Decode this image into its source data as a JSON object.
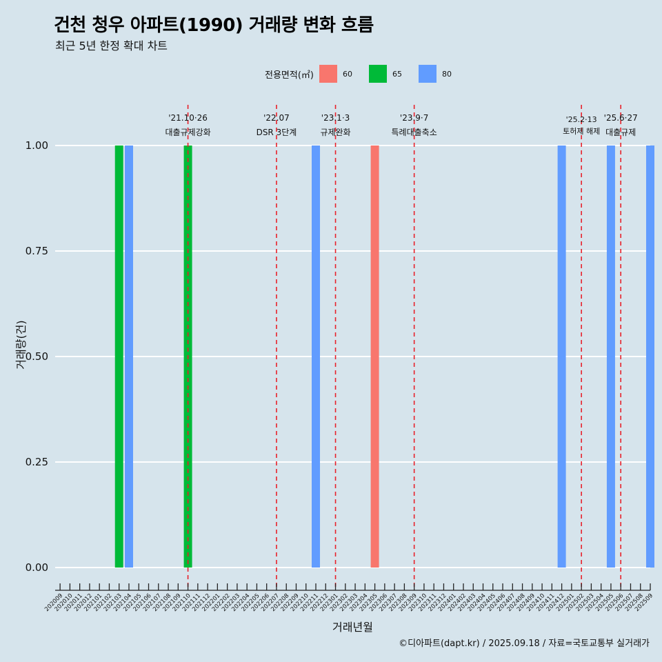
{
  "title": "건천 청우 아파트(1990) 거래량 변화 흐름",
  "subtitle": "최근 5년 한정 확대 차트",
  "caption": "©디아파트(dapt.kr) / 2025.09.18 / 자료=국토교통부 실거래가",
  "legend": {
    "title": "전용면적(㎡)",
    "items": [
      {
        "label": "60",
        "color": "#f8766d"
      },
      {
        "label": "65",
        "color": "#00ba38"
      },
      {
        "label": "80",
        "color": "#619cff"
      }
    ]
  },
  "chart_data": {
    "type": "bar",
    "title": "건천 청우 아파트(1990) 거래량 변화 흐름",
    "subtitle": "최근 5년 한정 확대 차트",
    "xlabel": "거래년월",
    "ylabel": "거래량(건)",
    "ylim": [
      0,
      1
    ],
    "yticks": [
      "0.00",
      "0.25",
      "0.50",
      "0.75",
      "1.00"
    ],
    "grid": true,
    "legend_position": "top",
    "categories": [
      "202009",
      "202010",
      "202011",
      "202012",
      "202101",
      "202102",
      "202103",
      "202104",
      "202105",
      "202106",
      "202107",
      "202108",
      "202109",
      "202110",
      "202111",
      "202112",
      "202201",
      "202202",
      "202203",
      "202204",
      "202205",
      "202206",
      "202207",
      "202208",
      "202209",
      "202210",
      "202211",
      "202212",
      "202301",
      "202302",
      "202303",
      "202304",
      "202305",
      "202306",
      "202307",
      "202308",
      "202309",
      "202310",
      "202311",
      "202312",
      "202401",
      "202402",
      "202403",
      "202404",
      "202405",
      "202406",
      "202407",
      "202408",
      "202409",
      "202410",
      "202411",
      "202412",
      "202501",
      "202502",
      "202503",
      "202504",
      "202505",
      "202506",
      "202507",
      "202508",
      "202509"
    ],
    "series": [
      {
        "name": "60",
        "color": "#f8766d",
        "points": [
          {
            "x": "202305",
            "y": 1
          }
        ]
      },
      {
        "name": "65",
        "color": "#00ba38",
        "points": [
          {
            "x": "202103",
            "y": 1
          },
          {
            "x": "202110",
            "y": 1
          }
        ]
      },
      {
        "name": "80",
        "color": "#619cff",
        "points": [
          {
            "x": "202104",
            "y": 1
          },
          {
            "x": "202211",
            "y": 1
          },
          {
            "x": "202412",
            "y": 1
          },
          {
            "x": "202505",
            "y": 1
          },
          {
            "x": "202509",
            "y": 1
          }
        ]
      }
    ],
    "annotations": [
      {
        "x": "202110",
        "line1": "'21.10·26",
        "line2": "대출규제강화"
      },
      {
        "x": "202207",
        "line1": "'22.07",
        "line2": "DSR 3단계"
      },
      {
        "x": "202301",
        "line1": "'23.1·3",
        "line2": "규제완화"
      },
      {
        "x": "202309",
        "line1": "'23.9·7",
        "line2": "특례대출축소"
      },
      {
        "x": "202502",
        "line1": "'25.2·13",
        "line2": "토허제 해제"
      },
      {
        "x": "202506",
        "line1": "'25.6·27",
        "line2": "대출규제"
      }
    ]
  }
}
